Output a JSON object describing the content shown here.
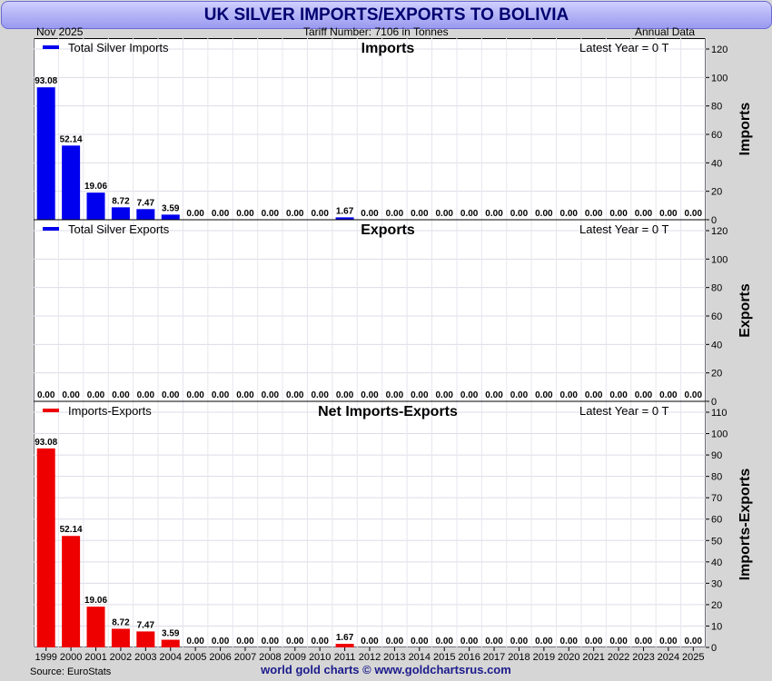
{
  "title": "UK SILVER IMPORTS/EXPORTS TO BOLIVIA",
  "header": {
    "date": "Nov  2025",
    "tariff": "Tariff Number: 7106 in Tonnes",
    "frequency": "Annual Data"
  },
  "footer": {
    "source": "Source: EuroStats",
    "credit": "world gold charts © www.goldchartsrus.com"
  },
  "colors": {
    "imports": "#0000ee",
    "exports": "#0000ee",
    "net": "#ee0000"
  },
  "chart_data": [
    {
      "type": "bar",
      "title": "Imports",
      "legend": "Total Silver Imports",
      "latest": "Latest Year = 0 T",
      "ylabel": "Imports",
      "ylim": [
        0,
        120
      ],
      "yticks": [
        0,
        20,
        40,
        60,
        80,
        100,
        120
      ],
      "categories": [
        "1999",
        "2000",
        "2001",
        "2002",
        "2003",
        "2004",
        "2005",
        "2006",
        "2007",
        "2008",
        "2009",
        "2010",
        "2011",
        "2012",
        "2013",
        "2014",
        "2015",
        "2016",
        "2017",
        "2018",
        "2019",
        "2020",
        "2021",
        "2022",
        "2023",
        "2024",
        "2025"
      ],
      "values": [
        93.08,
        52.14,
        19.06,
        8.72,
        7.47,
        3.59,
        0,
        0,
        0,
        0,
        0,
        0,
        1.67,
        0,
        0,
        0,
        0,
        0,
        0,
        0,
        0,
        0,
        0,
        0,
        0,
        0,
        0
      ],
      "labels": [
        "93.08",
        "52.14",
        "19.06",
        "8.72",
        "7.47",
        "3.59",
        "0.00",
        "0.00",
        "0.00",
        "0.00",
        "0.00",
        "0.00",
        "1.67",
        "0.00",
        "0.00",
        "0.00",
        "0.00",
        "0.00",
        "0.00",
        "0.00",
        "0.00",
        "0.00",
        "0.00",
        "0.00",
        "0.00",
        "0.00",
        "0.00"
      ]
    },
    {
      "type": "bar",
      "title": "Exports",
      "legend": "Total Silver Exports",
      "latest": "Latest Year = 0 T",
      "ylabel": "Exports",
      "ylim": [
        0,
        120
      ],
      "yticks": [
        0,
        20,
        40,
        60,
        80,
        100,
        120
      ],
      "categories": [
        "1999",
        "2000",
        "2001",
        "2002",
        "2003",
        "2004",
        "2005",
        "2006",
        "2007",
        "2008",
        "2009",
        "2010",
        "2011",
        "2012",
        "2013",
        "2014",
        "2015",
        "2016",
        "2017",
        "2018",
        "2019",
        "2020",
        "2021",
        "2022",
        "2023",
        "2024",
        "2025"
      ],
      "values": [
        0,
        0,
        0,
        0,
        0,
        0,
        0,
        0,
        0,
        0,
        0,
        0,
        0,
        0,
        0,
        0,
        0,
        0,
        0,
        0,
        0,
        0,
        0,
        0,
        0,
        0,
        0
      ],
      "labels": [
        "0.00",
        "0.00",
        "0.00",
        "0.00",
        "0.00",
        "0.00",
        "0.00",
        "0.00",
        "0.00",
        "0.00",
        "0.00",
        "0.00",
        "0.00",
        "0.00",
        "0.00",
        "0.00",
        "0.00",
        "0.00",
        "0.00",
        "0.00",
        "0.00",
        "0.00",
        "0.00",
        "0.00",
        "0.00",
        "0.00",
        "0.00"
      ]
    },
    {
      "type": "bar",
      "title": "Net Imports-Exports",
      "legend": "Imports-Exports",
      "latest": "Latest Year = 0 T",
      "ylabel": "Imports-Exports",
      "ylim": [
        0,
        110
      ],
      "yticks": [
        0,
        10,
        20,
        30,
        40,
        50,
        60,
        70,
        80,
        90,
        100,
        110
      ],
      "categories": [
        "1999",
        "2000",
        "2001",
        "2002",
        "2003",
        "2004",
        "2005",
        "2006",
        "2007",
        "2008",
        "2009",
        "2010",
        "2011",
        "2012",
        "2013",
        "2014",
        "2015",
        "2016",
        "2017",
        "2018",
        "2019",
        "2020",
        "2021",
        "2022",
        "2023",
        "2024",
        "2025"
      ],
      "values": [
        93.08,
        52.14,
        19.06,
        8.72,
        7.47,
        3.59,
        0,
        0,
        0,
        0,
        0,
        0,
        1.67,
        0,
        0,
        0,
        0,
        0,
        0,
        0,
        0,
        0,
        0,
        0,
        0,
        0,
        0
      ],
      "labels": [
        "93.08",
        "52.14",
        "19.06",
        "8.72",
        "7.47",
        "3.59",
        "0.00",
        "0.00",
        "0.00",
        "0.00",
        "0.00",
        "0.00",
        "1.67",
        "0.00",
        "0.00",
        "0.00",
        "0.00",
        "0.00",
        "0.00",
        "0.00",
        "0.00",
        "0.00",
        "0.00",
        "0.00",
        "0.00",
        "0.00",
        "0.00"
      ]
    }
  ]
}
